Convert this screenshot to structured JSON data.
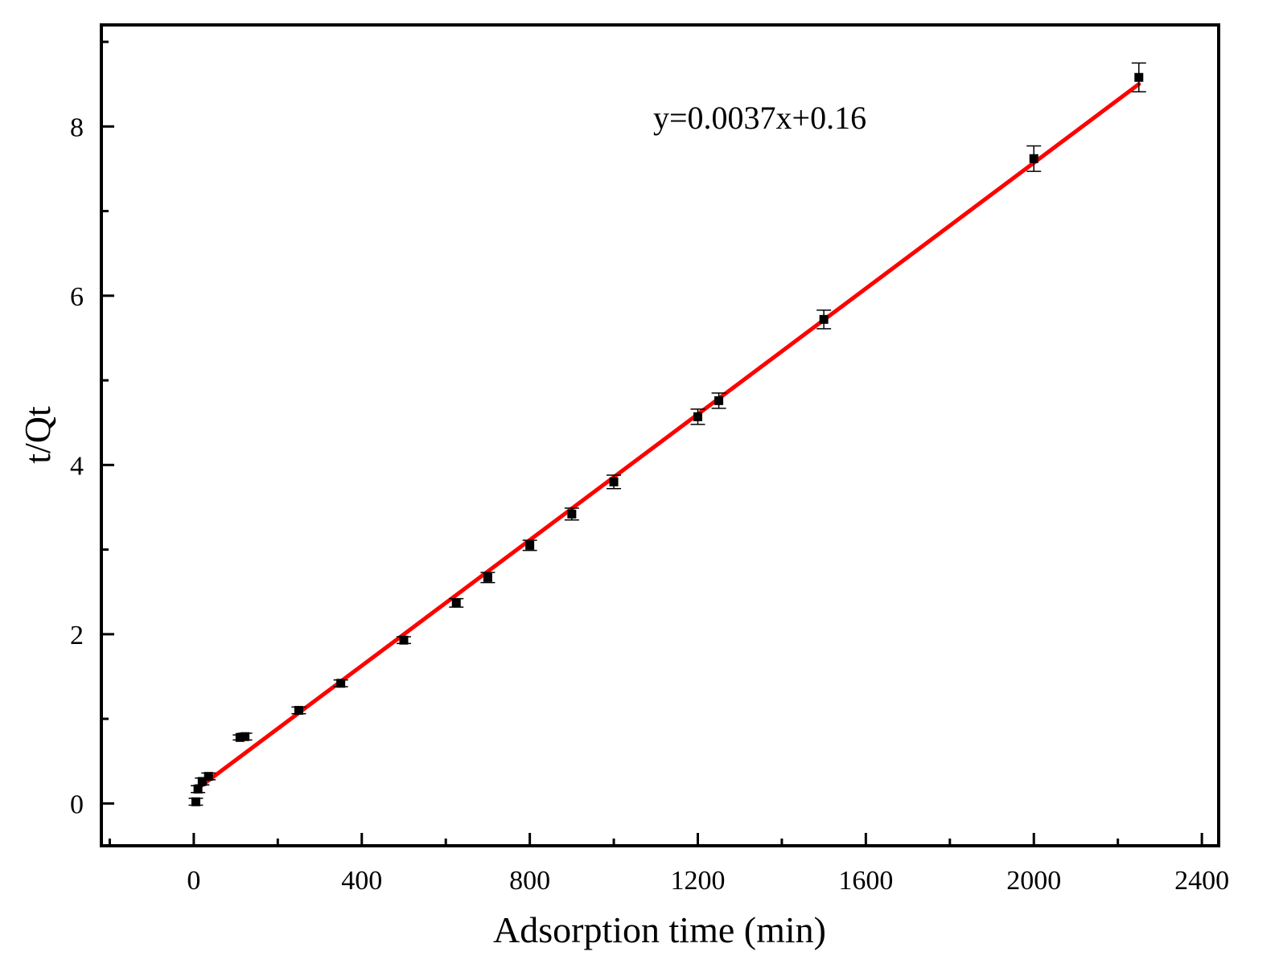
{
  "chart_data": {
    "type": "scatter",
    "title": "",
    "xlabel": "Adsorption time (min)",
    "ylabel": "t/Qt",
    "xlim": [
      -220,
      2440
    ],
    "ylim": [
      -0.5,
      9.2
    ],
    "xticks": [
      0,
      400,
      800,
      1200,
      1600,
      2000,
      2400
    ],
    "yticks": [
      0,
      2,
      4,
      6,
      8
    ],
    "grid": false,
    "legend": "none",
    "annotation": "y=0.0037x+0.16",
    "series": [
      {
        "color": "#000000",
        "marker": "square",
        "points": [
          {
            "x": 5,
            "y": 0.02,
            "err": 0.04
          },
          {
            "x": 10,
            "y": 0.17,
            "err": 0.04
          },
          {
            "x": 20,
            "y": 0.26,
            "err": 0.04
          },
          {
            "x": 35,
            "y": 0.32,
            "err": 0.04
          },
          {
            "x": 110,
            "y": 0.78,
            "err": 0.03
          },
          {
            "x": 122,
            "y": 0.79,
            "err": 0.04
          },
          {
            "x": 250,
            "y": 1.1,
            "err": 0.04
          },
          {
            "x": 350,
            "y": 1.42,
            "err": 0.04
          },
          {
            "x": 500,
            "y": 1.93,
            "err": 0.04
          },
          {
            "x": 625,
            "y": 2.37,
            "err": 0.05
          },
          {
            "x": 700,
            "y": 2.67,
            "err": 0.06
          },
          {
            "x": 800,
            "y": 3.05,
            "err": 0.06
          },
          {
            "x": 900,
            "y": 3.42,
            "err": 0.07
          },
          {
            "x": 1000,
            "y": 3.8,
            "err": 0.08
          },
          {
            "x": 1200,
            "y": 4.57,
            "err": 0.09
          },
          {
            "x": 1250,
            "y": 4.76,
            "err": 0.09
          },
          {
            "x": 1500,
            "y": 5.72,
            "err": 0.11
          },
          {
            "x": 2000,
            "y": 7.62,
            "err": 0.15
          },
          {
            "x": 2250,
            "y": 8.58,
            "err": 0.17
          }
        ]
      },
      {
        "type": "line",
        "color": "#ff0000",
        "x": [
          5,
          2250
        ],
        "y": [
          0.16,
          8.5
        ]
      }
    ]
  }
}
